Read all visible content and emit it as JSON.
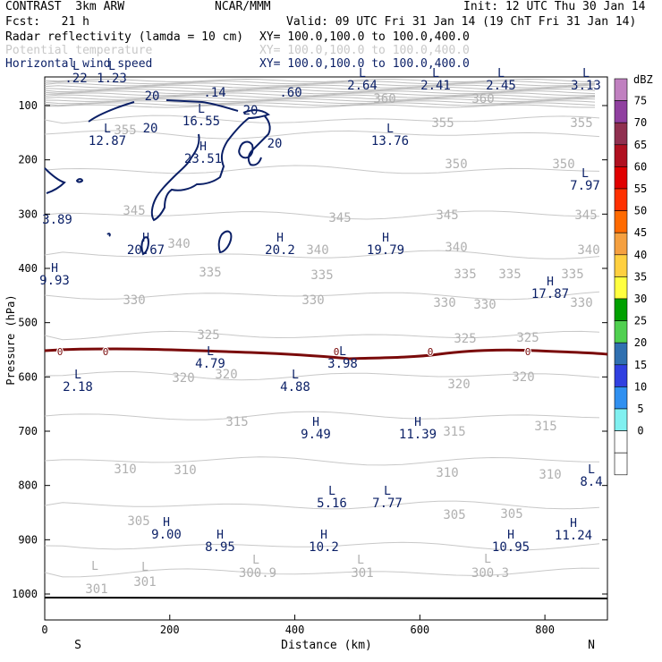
{
  "header": {
    "model": "CONTRAST  3km ARW",
    "org": "NCAR/MMM",
    "init": "Init: 12 UTC Thu 30 Jan 14",
    "fcst": "Fcst:   21 h",
    "valid": "Valid: 09 UTC Fri 31 Jan 14 (19 ChT Fri 31 Jan 14)",
    "fields": [
      {
        "label": "Radar reflectivity (lamda = 10 cm)",
        "xy": "XY= 100.0,100.0 to 100.0,400.0",
        "color": "#000000"
      },
      {
        "label": "Potential temperature",
        "xy": "XY= 100.0,100.0 to 100.0,400.0",
        "color": "#c8c8c8"
      },
      {
        "label": "Horizontal wind speed",
        "xy": "XY= 100.0,100.0 to 100.0,400.0",
        "color": "#0a1f66"
      }
    ]
  },
  "chart_data": {
    "type": "contour",
    "xlabel": "Distance (km)",
    "ylabel": "Pressure (hPa)",
    "xlim": [
      0,
      900
    ],
    "ylim": [
      1000,
      60
    ],
    "xticks": [
      "0",
      "200",
      "400",
      "600",
      "800"
    ],
    "yticks": [
      "100",
      "200",
      "300",
      "400",
      "500",
      "600",
      "700",
      "800",
      "900",
      "1000"
    ],
    "end_labels": {
      "left": "S",
      "right": "N"
    },
    "theta_contours": [
      {
        "label": "360",
        "p": 120
      },
      {
        "label": "355",
        "p": 150
      },
      {
        "label": "350",
        "p": 190
      },
      {
        "label": "345",
        "p": 240
      },
      {
        "label": "340",
        "p": 285
      },
      {
        "label": "335",
        "p": 330
      },
      {
        "label": "330",
        "p": 375
      },
      {
        "label": "325",
        "p": 420
      },
      {
        "label": "320",
        "p": 465
      },
      {
        "label": "315",
        "p": 515
      },
      {
        "label": "310",
        "p": 565
      },
      {
        "label": "305",
        "p": 610
      },
      {
        "label": "301",
        "p": 640
      }
    ],
    "theta_labels": [
      {
        "t": "360",
        "x": 430,
        "p": 115
      },
      {
        "t": "360",
        "x": 540,
        "p": 115
      },
      {
        "t": "355",
        "x": 140,
        "p": 150
      },
      {
        "t": "355",
        "x": 495,
        "p": 142
      },
      {
        "t": "355",
        "x": 650,
        "p": 142
      },
      {
        "t": "350",
        "x": 510,
        "p": 188
      },
      {
        "t": "350",
        "x": 630,
        "p": 188
      },
      {
        "t": "345",
        "x": 150,
        "p": 240
      },
      {
        "t": "345",
        "x": 380,
        "p": 248
      },
      {
        "t": "345",
        "x": 500,
        "p": 245
      },
      {
        "t": "345",
        "x": 655,
        "p": 245
      },
      {
        "t": "340",
        "x": 200,
        "p": 277
      },
      {
        "t": "340",
        "x": 355,
        "p": 284
      },
      {
        "t": "340",
        "x": 510,
        "p": 281
      },
      {
        "t": "340",
        "x": 658,
        "p": 284
      },
      {
        "t": "335",
        "x": 235,
        "p": 309
      },
      {
        "t": "335",
        "x": 360,
        "p": 312
      },
      {
        "t": "335",
        "x": 520,
        "p": 311
      },
      {
        "t": "335",
        "x": 570,
        "p": 311
      },
      {
        "t": "335",
        "x": 640,
        "p": 311
      },
      {
        "t": "330",
        "x": 150,
        "p": 340
      },
      {
        "t": "330",
        "x": 350,
        "p": 340
      },
      {
        "t": "330",
        "x": 497,
        "p": 343
      },
      {
        "t": "330",
        "x": 542,
        "p": 345
      },
      {
        "t": "330",
        "x": 650,
        "p": 343
      },
      {
        "t": "325",
        "x": 233,
        "p": 379
      },
      {
        "t": "325",
        "x": 520,
        "p": 383
      },
      {
        "t": "325",
        "x": 590,
        "p": 382
      },
      {
        "t": "320",
        "x": 205,
        "p": 427
      },
      {
        "t": "320",
        "x": 253,
        "p": 423
      },
      {
        "t": "320",
        "x": 513,
        "p": 434
      },
      {
        "t": "320",
        "x": 585,
        "p": 426
      },
      {
        "t": "315",
        "x": 265,
        "p": 476
      },
      {
        "t": "315",
        "x": 508,
        "p": 487
      },
      {
        "t": "315",
        "x": 610,
        "p": 481
      },
      {
        "t": "310",
        "x": 140,
        "p": 529
      },
      {
        "t": "310",
        "x": 207,
        "p": 530
      },
      {
        "t": "310",
        "x": 500,
        "p": 533
      },
      {
        "t": "310",
        "x": 615,
        "p": 535
      },
      {
        "t": "305",
        "x": 155,
        "p": 587
      },
      {
        "t": "305",
        "x": 508,
        "p": 580
      },
      {
        "t": "305",
        "x": 572,
        "p": 579
      },
      {
        "t": "301",
        "x": 108,
        "p": 663
      },
      {
        "t": "301",
        "x": 162,
        "p": 655
      },
      {
        "t": "300.9",
        "x": 288,
        "p": 645
      },
      {
        "t": "301",
        "x": 405,
        "p": 645
      },
      {
        "t": "300.3",
        "x": 548,
        "p": 645
      }
    ],
    "theta_grey_markers": [
      {
        "t": "L",
        "x": 106,
        "p": 637
      },
      {
        "t": "L",
        "x": 162,
        "p": 638
      },
      {
        "t": "L",
        "x": 286,
        "p": 630
      },
      {
        "t": "L",
        "x": 403,
        "p": 630
      },
      {
        "t": "L",
        "x": 545,
        "p": 629
      }
    ],
    "wind_extrema": [
      {
        "t": "L",
        "v": ".22",
        "x": 85,
        "p": 92
      },
      {
        "t": "L",
        "v": "1.23",
        "x": 125,
        "p": 92
      },
      {
        "t": "",
        "v": ".14",
        "x": 240,
        "p": 108
      },
      {
        "t": "",
        "v": ".60",
        "x": 325,
        "p": 108
      },
      {
        "t": "L",
        "v": "2.64",
        "x": 405,
        "p": 100
      },
      {
        "t": "L",
        "v": "2.41",
        "x": 487,
        "p": 100
      },
      {
        "t": "L",
        "v": "2.45",
        "x": 560,
        "p": 100
      },
      {
        "t": "L",
        "v": "3.13",
        "x": 655,
        "p": 100
      },
      {
        "t": "L",
        "v": "16.55",
        "x": 225,
        "p": 140
      },
      {
        "t": "L",
        "v": "12.87",
        "x": 120,
        "p": 162
      },
      {
        "t": "L",
        "v": "13.76",
        "x": 436,
        "p": 162
      },
      {
        "t": "H",
        "v": "23.51",
        "x": 227,
        "p": 182
      },
      {
        "t": "L",
        "v": "7.97",
        "x": 654,
        "p": 212
      },
      {
        "t": "",
        "v": "3.89",
        "x": 64,
        "p": 250
      },
      {
        "t": "H",
        "v": "20.67",
        "x": 163,
        "p": 284
      },
      {
        "t": "H",
        "v": "20.2",
        "x": 313,
        "p": 284
      },
      {
        "t": "H",
        "v": "19.79",
        "x": 431,
        "p": 284
      },
      {
        "t": "H",
        "v": "9.93",
        "x": 61,
        "p": 318
      },
      {
        "t": "H",
        "v": "17.87",
        "x": 615,
        "p": 333
      },
      {
        "t": "L",
        "v": "4.79",
        "x": 235,
        "p": 411
      },
      {
        "t": "L",
        "v": "3.98",
        "x": 383,
        "p": 411
      },
      {
        "t": "L",
        "v": "2.18",
        "x": 87,
        "p": 437
      },
      {
        "t": "L",
        "v": "4.88",
        "x": 330,
        "p": 437
      },
      {
        "t": "H",
        "v": "9.49",
        "x": 353,
        "p": 490
      },
      {
        "t": "H",
        "v": "11.39",
        "x": 467,
        "p": 490
      },
      {
        "t": "L",
        "v": "8.4",
        "x": 661,
        "p": 543
      },
      {
        "t": "L",
        "v": "5.16",
        "x": 371,
        "p": 567
      },
      {
        "t": "L",
        "v": "7.77",
        "x": 433,
        "p": 567
      },
      {
        "t": "H",
        "v": "9.00",
        "x": 186,
        "p": 602
      },
      {
        "t": "H",
        "v": "8.95",
        "x": 246,
        "p": 616
      },
      {
        "t": "H",
        "v": "10.2",
        "x": 362,
        "p": 616
      },
      {
        "t": "H",
        "v": "10.95",
        "x": 571,
        "p": 616
      },
      {
        "t": "H",
        "v": "11.24",
        "x": 641,
        "p": 603
      }
    ],
    "wind_contour_labels": [
      {
        "t": "20",
        "x": 170,
        "p": 112
      },
      {
        "t": "20",
        "x": 280,
        "p": 128
      },
      {
        "t": "20",
        "x": 168,
        "p": 148
      },
      {
        "t": "20",
        "x": 307,
        "p": 165
      }
    ],
    "zero_c_labels": [
      {
        "t": "0",
        "x": 67
      },
      {
        "t": "0",
        "x": 118
      },
      {
        "t": "0",
        "x": 376
      },
      {
        "t": "0",
        "x": 481
      },
      {
        "t": "0",
        "x": 590
      }
    ],
    "colorbar": {
      "title": "dBZ",
      "levels": [
        "75",
        "70",
        "65",
        "60",
        "55",
        "50",
        "45",
        "40",
        "35",
        "30",
        "25",
        "20",
        "15",
        "10",
        "5",
        "0"
      ],
      "colors": [
        "#c080c0",
        "#9040a0",
        "#903050",
        "#b01020",
        "#e00000",
        "#ff3000",
        "#ff6a00",
        "#f5a040",
        "#ffd040",
        "#ffff40",
        "#00a000",
        "#50d050",
        "#3070b0",
        "#3040e0",
        "#3090f0",
        "#80f0f0",
        "#ffffff",
        "#ffffff"
      ]
    }
  }
}
